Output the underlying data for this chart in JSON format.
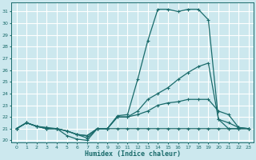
{
  "xlabel": "Humidex (Indice chaleur)",
  "bg_color": "#cce8ee",
  "grid_color": "#ffffff",
  "line_color": "#1a6b6b",
  "xlim": [
    -0.5,
    23.5
  ],
  "ylim": [
    19.8,
    31.8
  ],
  "yticks": [
    20,
    21,
    22,
    23,
    24,
    25,
    26,
    27,
    28,
    29,
    30,
    31
  ],
  "xticks": [
    0,
    1,
    2,
    3,
    4,
    5,
    6,
    7,
    8,
    9,
    10,
    11,
    12,
    13,
    14,
    15,
    16,
    17,
    18,
    19,
    20,
    21,
    22,
    23
  ],
  "line1_x": [
    0,
    1,
    2,
    3,
    4,
    5,
    6,
    7,
    8,
    9,
    10,
    11,
    12,
    13,
    14,
    15,
    16,
    17,
    18,
    19,
    20,
    21,
    22,
    23
  ],
  "line1_y": [
    21.0,
    21.5,
    21.2,
    21.1,
    21.0,
    20.4,
    20.1,
    20.0,
    21.0,
    21.0,
    22.1,
    22.2,
    25.2,
    28.5,
    31.2,
    31.2,
    31.0,
    31.2,
    31.2,
    30.3,
    21.8,
    21.0,
    21.0,
    21.0
  ],
  "line2_x": [
    0,
    1,
    2,
    3,
    4,
    5,
    6,
    7,
    8,
    9,
    10,
    11,
    12,
    13,
    14,
    15,
    16,
    17,
    18,
    19,
    20,
    21,
    22,
    23
  ],
  "line2_y": [
    21.0,
    21.5,
    21.2,
    21.0,
    21.0,
    20.8,
    20.5,
    20.2,
    21.0,
    21.0,
    22.0,
    22.0,
    22.5,
    23.5,
    24.0,
    24.5,
    25.2,
    25.8,
    26.3,
    26.6,
    21.8,
    21.5,
    21.1,
    21.0
  ],
  "line3_x": [
    0,
    1,
    2,
    3,
    4,
    5,
    6,
    7,
    8,
    9,
    10,
    11,
    12,
    13,
    14,
    15,
    16,
    17,
    18,
    19,
    20,
    21,
    22,
    23
  ],
  "line3_y": [
    21.0,
    21.5,
    21.2,
    21.0,
    21.0,
    20.8,
    20.5,
    20.4,
    21.0,
    21.0,
    22.0,
    22.0,
    22.2,
    22.5,
    23.0,
    23.2,
    23.3,
    23.5,
    23.5,
    23.5,
    22.5,
    22.2,
    21.1,
    21.0
  ],
  "line4_x": [
    0,
    1,
    2,
    3,
    4,
    5,
    6,
    7,
    8,
    9,
    10,
    11,
    12,
    13,
    14,
    15,
    16,
    17,
    18,
    19,
    20,
    21,
    22,
    23
  ],
  "line4_y": [
    21.0,
    21.5,
    21.2,
    21.0,
    21.0,
    20.8,
    20.5,
    20.4,
    21.0,
    21.0,
    21.0,
    21.0,
    21.0,
    21.0,
    21.0,
    21.0,
    21.0,
    21.0,
    21.0,
    21.0,
    21.0,
    21.0,
    21.0,
    21.0
  ]
}
